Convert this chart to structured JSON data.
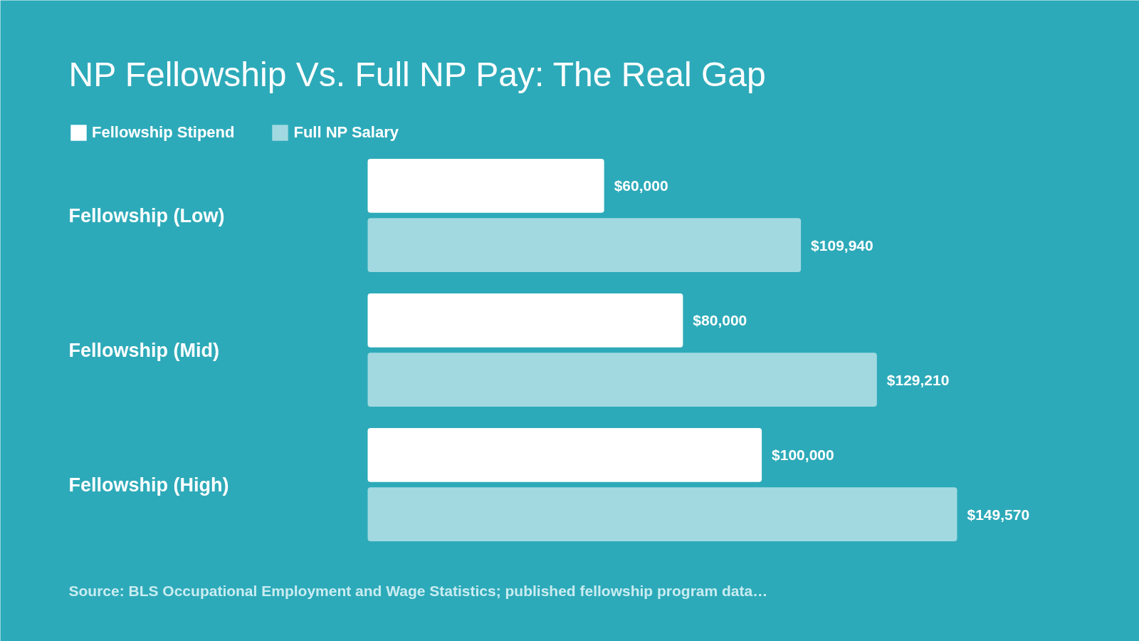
{
  "chart_data": {
    "type": "bar",
    "orientation": "horizontal",
    "title": "NP Fellowship Vs. Full NP Pay: The Real Gap",
    "categories": [
      "Fellowship (Low)",
      "Fellowship (Mid)",
      "Fellowship (High)"
    ],
    "series": [
      {
        "name": "Fellowship Stipend",
        "color": "#ffffff",
        "values": [
          60000,
          80000,
          100000
        ],
        "value_labels": [
          "$60,000",
          "$80,000",
          "$100,000"
        ]
      },
      {
        "name": "Full NP Salary",
        "color": "#a2d9e1",
        "values": [
          109940,
          129210,
          149570
        ],
        "value_labels": [
          "$109,940",
          "$129,210",
          "$149,570"
        ]
      }
    ],
    "legend": "top left",
    "grid": false,
    "annotations": [
      "Source: BLS Occupational Employment and Wage Statistics; published fellowship program data…"
    ]
  }
}
